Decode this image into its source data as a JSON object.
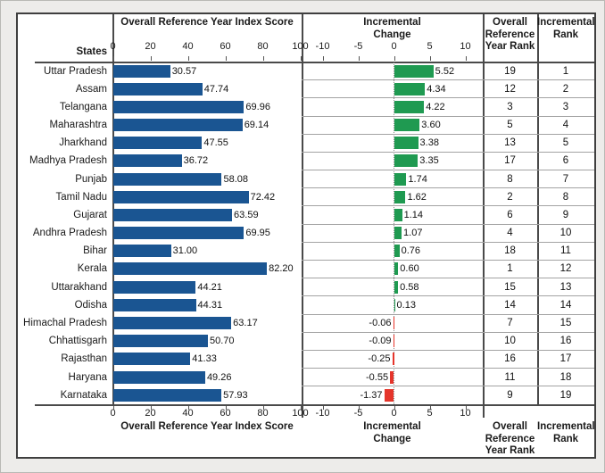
{
  "colors": {
    "score_bar": "#1A5592",
    "positive_bar": "#1F9A51",
    "negative_bar": "#E5352B",
    "grid_dark": "#4a4a4a",
    "row_separator": "#a3a3a3"
  },
  "chart_data": {
    "type": "bar",
    "orientation": "horizontal",
    "score_axis": {
      "title": "Overall Reference Year Index Score",
      "ticks": [
        0,
        20,
        40,
        60,
        80,
        100
      ],
      "range": [
        0,
        100
      ]
    },
    "change_axis": {
      "title_lines": [
        "Incremental",
        "Change"
      ],
      "ticks": [
        -10,
        -5,
        0,
        5,
        10
      ],
      "range": [
        -10,
        10
      ]
    },
    "columns": {
      "states": "States",
      "ref_rank_lines": [
        "Overall",
        "Reference",
        "Year Rank"
      ],
      "inc_rank_lines": [
        "Incremental",
        "Rank"
      ]
    },
    "rows": [
      {
        "state": "Uttar Pradesh",
        "score": 30.57,
        "change": 5.52,
        "ref_rank": 19,
        "inc_rank": 1
      },
      {
        "state": "Assam",
        "score": 47.74,
        "change": 4.34,
        "ref_rank": 12,
        "inc_rank": 2
      },
      {
        "state": "Telangana",
        "score": 69.96,
        "change": 4.22,
        "ref_rank": 3,
        "inc_rank": 3
      },
      {
        "state": "Maharashtra",
        "score": 69.14,
        "change": 3.6,
        "ref_rank": 5,
        "inc_rank": 4
      },
      {
        "state": "Jharkhand",
        "score": 47.55,
        "change": 3.38,
        "ref_rank": 13,
        "inc_rank": 5
      },
      {
        "state": "Madhya Pradesh",
        "score": 36.72,
        "change": 3.35,
        "ref_rank": 17,
        "inc_rank": 6
      },
      {
        "state": "Punjab",
        "score": 58.08,
        "change": 1.74,
        "ref_rank": 8,
        "inc_rank": 7
      },
      {
        "state": "Tamil Nadu",
        "score": 72.42,
        "change": 1.62,
        "ref_rank": 2,
        "inc_rank": 8
      },
      {
        "state": "Gujarat",
        "score": 63.59,
        "change": 1.14,
        "ref_rank": 6,
        "inc_rank": 9
      },
      {
        "state": "Andhra Pradesh",
        "score": 69.95,
        "change": 1.07,
        "ref_rank": 4,
        "inc_rank": 10
      },
      {
        "state": "Bihar",
        "score": 31.0,
        "change": 0.76,
        "ref_rank": 18,
        "inc_rank": 11
      },
      {
        "state": "Kerala",
        "score": 82.2,
        "change": 0.6,
        "ref_rank": 1,
        "inc_rank": 12
      },
      {
        "state": "Uttarakhand",
        "score": 44.21,
        "change": 0.58,
        "ref_rank": 15,
        "inc_rank": 13
      },
      {
        "state": "Odisha",
        "score": 44.31,
        "change": 0.13,
        "ref_rank": 14,
        "inc_rank": 14
      },
      {
        "state": "Himachal Pradesh",
        "score": 63.17,
        "change": -0.06,
        "ref_rank": 7,
        "inc_rank": 15
      },
      {
        "state": "Chhattisgarh",
        "score": 50.7,
        "change": -0.09,
        "ref_rank": 10,
        "inc_rank": 16
      },
      {
        "state": "Rajasthan",
        "score": 41.33,
        "change": -0.25,
        "ref_rank": 16,
        "inc_rank": 17
      },
      {
        "state": "Haryana",
        "score": 49.26,
        "change": -0.55,
        "ref_rank": 11,
        "inc_rank": 18
      },
      {
        "state": "Karnataka",
        "score": 57.93,
        "change": -1.37,
        "ref_rank": 9,
        "inc_rank": 19
      }
    ]
  }
}
